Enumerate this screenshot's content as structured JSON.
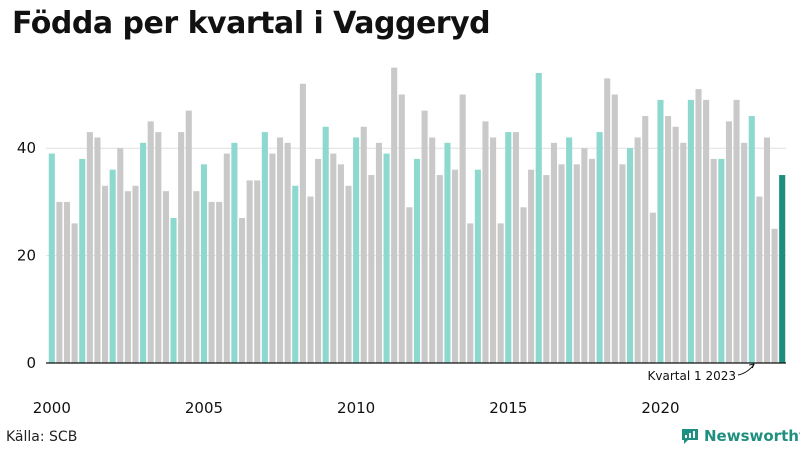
{
  "title": "Födda per kvartal i Vaggeryd",
  "source": "Källa: SCB",
  "brand": "Newsworthy",
  "colors": {
    "q1": "#8dd8cf",
    "other": "#c9c9c9",
    "highlight": "#1e8c7e",
    "grid": "#e0e0e0",
    "axis": "#111111"
  },
  "chart_data": {
    "type": "bar",
    "title": "Födda per kvartal i Vaggeryd",
    "xlabel": "",
    "ylabel": "",
    "ylim": [
      0,
      60
    ],
    "yticks": [
      0,
      20,
      40
    ],
    "xtick_labels": [
      "2000",
      "2005",
      "2010",
      "2015",
      "2020"
    ],
    "start_year": 2000,
    "annotation": "Kvartal 1 2023",
    "values": [
      39,
      30,
      30,
      26,
      38,
      43,
      42,
      33,
      36,
      40,
      32,
      33,
      41,
      45,
      43,
      32,
      27,
      43,
      47,
      32,
      37,
      30,
      30,
      39,
      41,
      27,
      34,
      34,
      43,
      39,
      42,
      41,
      33,
      52,
      31,
      38,
      44,
      39,
      37,
      33,
      42,
      44,
      35,
      41,
      39,
      55,
      50,
      29,
      38,
      47,
      42,
      35,
      41,
      36,
      50,
      26,
      36,
      45,
      42,
      26,
      43,
      43,
      29,
      36,
      54,
      35,
      41,
      37,
      42,
      37,
      40,
      38,
      43,
      53,
      50,
      37,
      40,
      42,
      46,
      28,
      49,
      46,
      44,
      41,
      49,
      51,
      49,
      38,
      38,
      45,
      49,
      41,
      46,
      31,
      42,
      25,
      35
    ]
  }
}
